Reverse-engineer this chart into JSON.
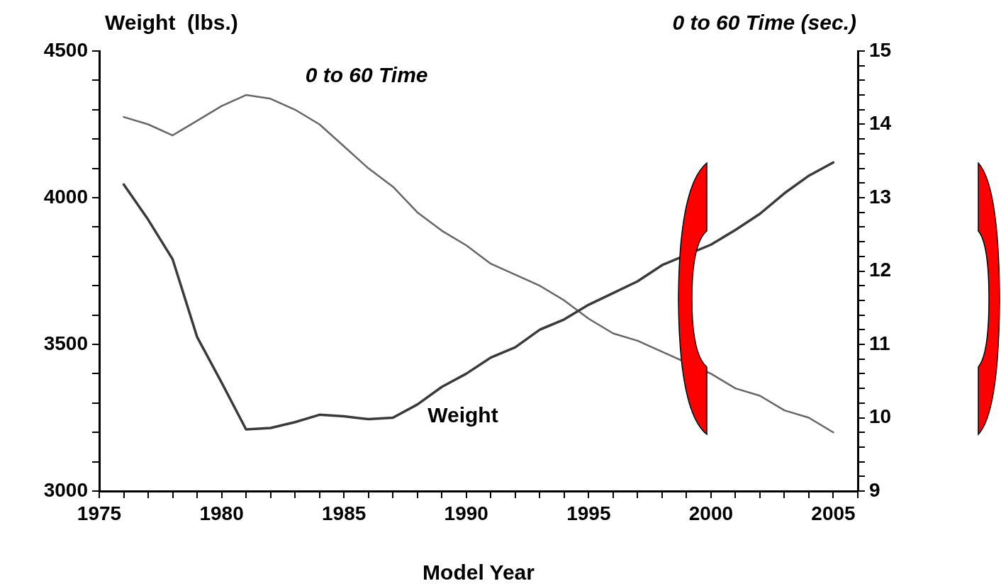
{
  "chart_data": {
    "type": "line",
    "xlabel": "Model Year",
    "ylabel": "Weight  (lbs.)",
    "y2label": "0 to 60 Time (sec.)",
    "x": [
      1976,
      1977,
      1978,
      1979,
      1980,
      1981,
      1982,
      1983,
      1984,
      1985,
      1986,
      1987,
      1988,
      1989,
      1990,
      1991,
      1992,
      1993,
      1994,
      1995,
      1996,
      1997,
      1998,
      1999,
      2000,
      2001,
      2002,
      2003,
      2004,
      2005
    ],
    "series": [
      {
        "name": "Weight",
        "color": "#3a3a3a",
        "values": [
          4045,
          3925,
          3790,
          3525,
          3370,
          3210,
          3215,
          3235,
          3260,
          3255,
          3245,
          3250,
          3295,
          3355,
          3400,
          3455,
          3490,
          3550,
          3585,
          3635,
          3675,
          3715,
          3770,
          null,
          3840,
          3890,
          3945,
          4015,
          4075,
          4120
        ]
      },
      {
        "name": "0 to 60 Time",
        "color": "#666666",
        "axis": "y2",
        "values": [
          14.1,
          14.0,
          13.85,
          14.05,
          14.25,
          14.4,
          14.35,
          14.2,
          14.0,
          13.7,
          13.4,
          13.15,
          12.8,
          12.55,
          12.35,
          12.1,
          11.95,
          11.8,
          11.6,
          11.35,
          11.15,
          11.05,
          10.9,
          null,
          10.6,
          10.4,
          10.3,
          10.1,
          10.0,
          9.8
        ]
      }
    ],
    "xlim": [
      1975,
      2006
    ],
    "xticks": [
      1975,
      {
        "value": 1976,
        "label": null
      },
      {
        "value": 1977,
        "label": null
      },
      {
        "value": 1978,
        "label": null
      },
      {
        "value": 1979,
        "label": null
      },
      1980,
      {
        "value": 1981,
        "label": null
      },
      {
        "value": 1982,
        "label": null
      },
      {
        "value": 1983,
        "label": null
      },
      {
        "value": 1984,
        "label": null
      },
      1985,
      {
        "value": 1986,
        "label": null
      },
      {
        "value": 1987,
        "label": null
      },
      {
        "value": 1988,
        "label": null
      },
      {
        "value": 1989,
        "label": null
      },
      1990,
      {
        "value": 1991,
        "label": null
      },
      {
        "value": 1992,
        "label": null
      },
      {
        "value": 1993,
        "label": null
      },
      {
        "value": 1994,
        "label": null
      },
      1995,
      {
        "value": 1996,
        "label": null
      },
      {
        "value": 1997,
        "label": null
      },
      {
        "value": 1998,
        "label": null
      },
      {
        "value": 1999,
        "label": null
      },
      2000,
      {
        "value": 2001,
        "label": null
      },
      {
        "value": 2002,
        "label": null
      },
      {
        "value": 2003,
        "label": null
      },
      {
        "value": 2004,
        "label": null
      },
      2005,
      {
        "value": 2006,
        "label": null
      }
    ],
    "ylim": [
      3000,
      4500
    ],
    "yticks": [
      3000,
      {
        "value": 3100,
        "label": null
      },
      {
        "value": 3200,
        "label": null
      },
      {
        "value": 3300,
        "label": null
      },
      {
        "value": 3400,
        "label": null
      },
      3500,
      {
        "value": 3600,
        "label": null
      },
      {
        "value": 3700,
        "label": null
      },
      {
        "value": 3800,
        "label": null
      },
      {
        "value": 3900,
        "label": null
      },
      4000,
      {
        "value": 4100,
        "label": null
      },
      {
        "value": 4200,
        "label": null
      },
      {
        "value": 4300,
        "label": null
      },
      {
        "value": 4400,
        "label": null
      },
      4500
    ],
    "y2lim": [
      9,
      15
    ],
    "y2ticks": [
      9,
      {
        "value": 9.2,
        "label": null
      },
      {
        "value": 9.4,
        "label": null
      },
      {
        "value": 9.6,
        "label": null
      },
      {
        "value": 9.8,
        "label": null
      },
      10,
      {
        "value": 10.2,
        "label": null
      },
      {
        "value": 10.4,
        "label": null
      },
      {
        "value": 10.6,
        "label": null
      },
      {
        "value": 10.8,
        "label": null
      },
      11,
      {
        "value": 11.2,
        "label": null
      },
      {
        "value": 11.4,
        "label": null
      },
      {
        "value": 11.6,
        "label": null
      },
      {
        "value": 11.8,
        "label": null
      },
      12,
      {
        "value": 12.2,
        "label": null
      },
      {
        "value": 12.4,
        "label": null
      },
      {
        "value": 12.6,
        "label": null
      },
      {
        "value": 12.8,
        "label": null
      },
      13,
      {
        "value": 13.2,
        "label": null
      },
      {
        "value": 13.4,
        "label": null
      },
      {
        "value": 13.6,
        "label": null
      },
      {
        "value": 13.8,
        "label": null
      },
      14,
      {
        "value": 14.2,
        "label": null
      },
      {
        "value": 14.4,
        "label": null
      },
      {
        "value": 14.6,
        "label": null
      },
      {
        "value": 14.8,
        "label": null
      },
      15
    ],
    "grid": false,
    "legend": false,
    "marker": "none",
    "line_style": "solid"
  }
}
